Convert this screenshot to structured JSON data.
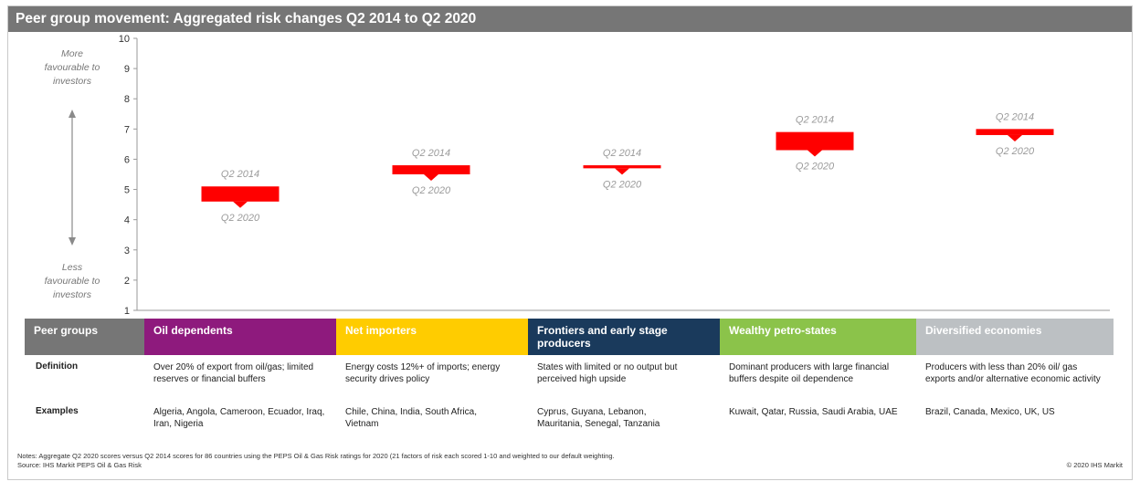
{
  "title": "Peer group movement: Aggregated risk changes Q2 2014 to Q2 2020",
  "colors": {
    "title_bg": "#767676",
    "marker": "#ff0000",
    "oil_dependents": "#8e1a7d",
    "net_importers": "#ffcc00",
    "frontiers": "#1a3a5c",
    "wealthy": "#8bc34a",
    "diversified": "#bcc0c3",
    "peer_groups": "#767676"
  },
  "chart_data": {
    "type": "range-bar",
    "ylim": [
      1,
      10
    ],
    "yticks": [
      "1",
      "2",
      "3",
      "4",
      "5",
      "6",
      "7",
      "8",
      "9",
      "10"
    ],
    "top_annotation": [
      "More",
      "favourable to",
      "investors"
    ],
    "bottom_annotation": [
      "Less",
      "favourable to",
      "investors"
    ],
    "series": [
      {
        "name": "Oil dependents",
        "q2_2014": 5.1,
        "q2_2020": 4.6
      },
      {
        "name": "Net importers",
        "q2_2014": 5.8,
        "q2_2020": 5.5
      },
      {
        "name": "Frontiers and early stage producers",
        "q2_2014": 5.8,
        "q2_2020": 5.7
      },
      {
        "name": "Wealthy petro-states",
        "q2_2014": 6.9,
        "q2_2020": 6.3
      },
      {
        "name": "Diversified economies",
        "q2_2014": 7.0,
        "q2_2020": 6.8
      }
    ],
    "label_2014": "Q2 2014",
    "label_2020": "Q2 2020"
  },
  "table": {
    "header_label": "Peer groups",
    "row_labels": [
      "Definition",
      "Examples"
    ],
    "groups": [
      {
        "name": "Oil dependents",
        "definition": "Over 20% of export from oil/gas; limited reserves or financial buffers",
        "examples": "Algeria, Angola, Cameroon, Ecuador, Iraq, Iran, Nigeria"
      },
      {
        "name": "Net importers",
        "definition": "Energy costs  12%+ of imports; energy security drives policy",
        "examples": "Chile, China, India, South Africa, Vietnam"
      },
      {
        "name": "Frontiers and early stage producers",
        "definition": "States with limited or no output  but  perceived high upside",
        "examples": "Cyprus, Guyana, Lebanon, Mauritania, Senegal, Tanzania"
      },
      {
        "name": "Wealthy petro-states",
        "definition": "Dominant producers with large financial buffers despite oil dependence",
        "examples": "Kuwait, Qatar, Russia, Saudi Arabia, UAE"
      },
      {
        "name": "Diversified economies",
        "definition": "Producers with less than 20% oil/ gas exports and/or alternative economic activity",
        "examples": "Brazil, Canada, Mexico, UK, US"
      }
    ]
  },
  "notes": "Notes: Aggregate Q2 2020 scores versus Q2 2014 scores for 86 countries using the PEPS Oil & Gas Risk ratings for 2020 (21 factors of risk each scored 1-10 and weighted to our default weighting.",
  "source": "Source: IHS Markit PEPS Oil & Gas Risk",
  "copyright": "© 2020 IHS Markit"
}
